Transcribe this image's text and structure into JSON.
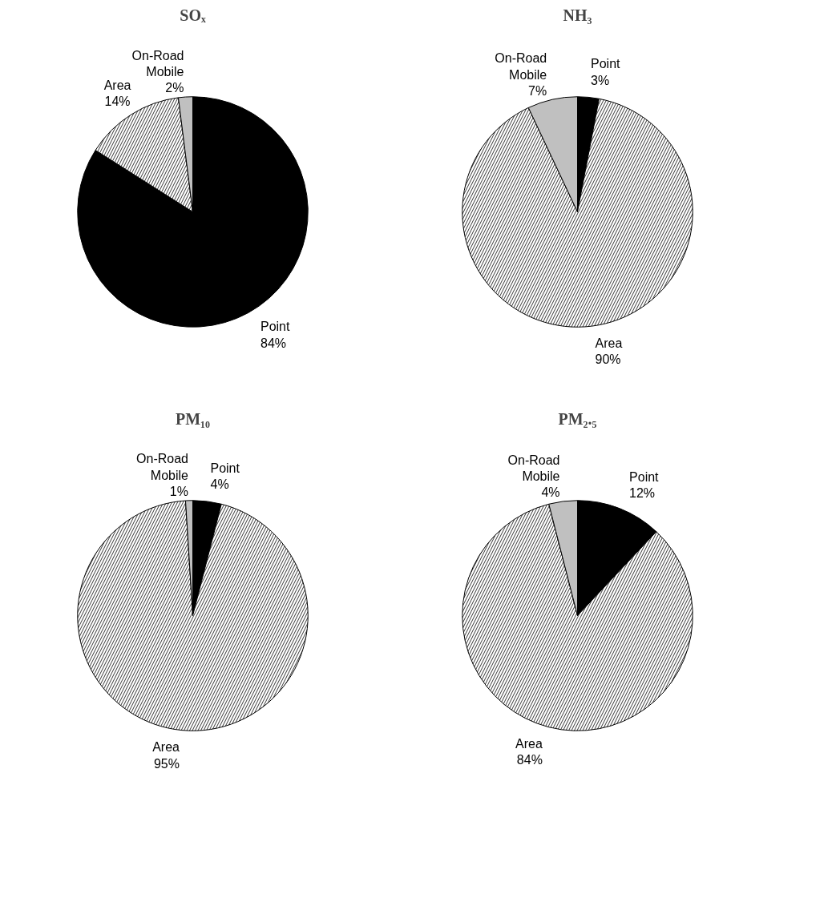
{
  "chart_data": [
    {
      "type": "pie",
      "title": "SOₓ",
      "categories": [
        "Point",
        "Area",
        "On-Road Mobile"
      ],
      "values": [
        84,
        14,
        2
      ],
      "value_labels": [
        "84%",
        "14%",
        "2%"
      ],
      "colors": [
        "#000000",
        "#ffffff",
        "#c0c0c0"
      ]
    },
    {
      "type": "pie",
      "title": "NH₃",
      "categories": [
        "Point",
        "Area",
        "On-Road Mobile"
      ],
      "values": [
        3,
        90,
        7
      ],
      "value_labels": [
        "3%",
        "90%",
        "7%"
      ],
      "colors": [
        "#000000",
        "#ffffff",
        "#c0c0c0"
      ]
    },
    {
      "type": "pie",
      "title": "PM₁₀",
      "categories": [
        "Point",
        "Area",
        "On-Road Mobile"
      ],
      "values": [
        4,
        95,
        1
      ],
      "value_labels": [
        "4%",
        "95%",
        "1%"
      ],
      "colors": [
        "#000000",
        "#ffffff",
        "#c0c0c0"
      ]
    },
    {
      "type": "pie",
      "title": "PM₂.₅",
      "categories": [
        "Point",
        "Area",
        "On-Road Mobile"
      ],
      "values": [
        12,
        84,
        4
      ],
      "value_labels": [
        "12%",
        "84%",
        "4%"
      ],
      "colors": [
        "#000000",
        "#ffffff",
        "#c0c0c0"
      ]
    }
  ]
}
